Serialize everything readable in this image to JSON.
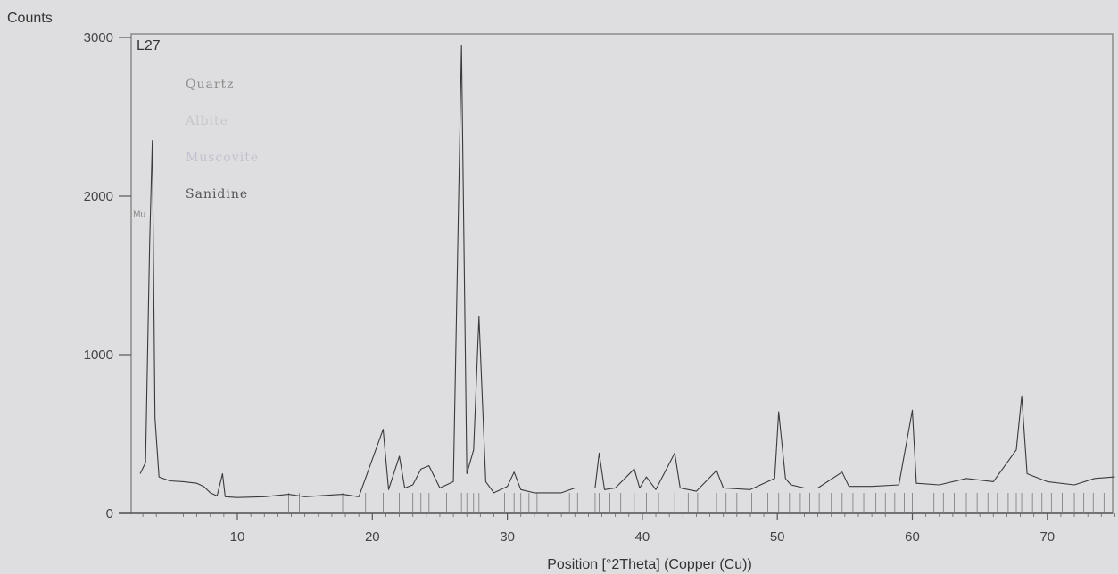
{
  "chart_data": {
    "type": "line",
    "title": "",
    "sample_label": "L27",
    "ylabel": "Counts",
    "xlabel": "Position [°2Theta] (Copper (Cu))",
    "xlim": [
      2,
      75
    ],
    "ylim": [
      0,
      3000
    ],
    "x_ticks": [
      10,
      20,
      30,
      40,
      50,
      60,
      70
    ],
    "x_tick_labels": [
      "10",
      "20",
      "30",
      "40",
      "50",
      "60",
      "70"
    ],
    "y_ticks": [
      0,
      1000,
      2000,
      3000
    ],
    "y_tick_labels": [
      "0",
      "1000",
      "2000",
      "3000"
    ],
    "grid": false,
    "legend_position": "top-left",
    "legend": [
      {
        "name": "Quartz",
        "color": "#8e8e8e"
      },
      {
        "name": "Albite",
        "color": "#c6c6cc"
      },
      {
        "name": "Muscovite",
        "color": "#c2c2d0"
      },
      {
        "name": "Sanidine",
        "color": "#555555"
      }
    ],
    "peak_annotations": [
      {
        "x": 3.4,
        "y": 1800,
        "text": "Mu"
      }
    ],
    "series": [
      {
        "points": [
          [
            2.8,
            250
          ],
          [
            3.2,
            320
          ],
          [
            3.5,
            1700
          ],
          [
            3.7,
            2350
          ],
          [
            3.9,
            600
          ],
          [
            4.2,
            230
          ],
          [
            5.0,
            205
          ],
          [
            6.0,
            200
          ],
          [
            7.0,
            190
          ],
          [
            7.5,
            170
          ],
          [
            8.0,
            130
          ],
          [
            8.5,
            110
          ],
          [
            8.9,
            250
          ],
          [
            9.1,
            105
          ],
          [
            10,
            100
          ],
          [
            12,
            105
          ],
          [
            13.8,
            120
          ],
          [
            15,
            105
          ],
          [
            17.8,
            120
          ],
          [
            19,
            105
          ],
          [
            20.8,
            530
          ],
          [
            21.2,
            150
          ],
          [
            22,
            360
          ],
          [
            22.4,
            160
          ],
          [
            23,
            180
          ],
          [
            23.6,
            280
          ],
          [
            24.2,
            300
          ],
          [
            25,
            160
          ],
          [
            26,
            200
          ],
          [
            26.6,
            2950
          ],
          [
            27,
            250
          ],
          [
            27.5,
            400
          ],
          [
            27.9,
            1240
          ],
          [
            28.4,
            200
          ],
          [
            29,
            130
          ],
          [
            30,
            170
          ],
          [
            30.5,
            260
          ],
          [
            31,
            150
          ],
          [
            32,
            130
          ],
          [
            34,
            130
          ],
          [
            35,
            160
          ],
          [
            36.5,
            160
          ],
          [
            36.8,
            380
          ],
          [
            37.2,
            150
          ],
          [
            38,
            160
          ],
          [
            39.4,
            280
          ],
          [
            39.8,
            160
          ],
          [
            40.3,
            230
          ],
          [
            41,
            150
          ],
          [
            42.4,
            380
          ],
          [
            42.8,
            160
          ],
          [
            44,
            140
          ],
          [
            45.5,
            270
          ],
          [
            46,
            160
          ],
          [
            48,
            150
          ],
          [
            49.8,
            220
          ],
          [
            50.1,
            640
          ],
          [
            50.6,
            220
          ],
          [
            51,
            180
          ],
          [
            52,
            160
          ],
          [
            53,
            160
          ],
          [
            54.8,
            260
          ],
          [
            55.3,
            170
          ],
          [
            57,
            170
          ],
          [
            59,
            180
          ],
          [
            60.0,
            650
          ],
          [
            60.3,
            190
          ],
          [
            62,
            180
          ],
          [
            64,
            220
          ],
          [
            66,
            200
          ],
          [
            67.7,
            400
          ],
          [
            68.1,
            740
          ],
          [
            68.5,
            250
          ],
          [
            70,
            200
          ],
          [
            72,
            180
          ],
          [
            73.5,
            220
          ],
          [
            75,
            230
          ]
        ]
      }
    ]
  }
}
